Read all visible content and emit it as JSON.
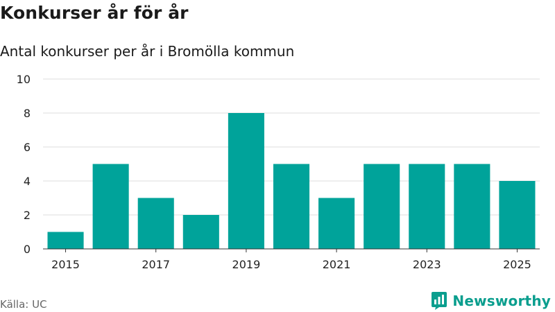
{
  "chart_data": {
    "type": "bar",
    "title": "Konkurser år för år",
    "subtitle": "Antal konkurser per år i Bromölla kommun",
    "categories": [
      "2015",
      "2016",
      "2017",
      "2018",
      "2019",
      "2020",
      "2021",
      "2022",
      "2023",
      "2024",
      "2025"
    ],
    "values": [
      1,
      5,
      3,
      2,
      8,
      5,
      3,
      5,
      5,
      5,
      4
    ],
    "xticks": [
      "2015",
      "2017",
      "2019",
      "2021",
      "2023",
      "2025"
    ],
    "yticks": [
      0,
      2,
      4,
      6,
      8,
      10
    ],
    "ylim": [
      0,
      10
    ],
    "xlabel": "",
    "ylabel": "",
    "grid": true,
    "bar_color": "#00a39a",
    "grid_color": "#dddddd"
  },
  "source": "Källa: UC",
  "brand": {
    "name": "Newsworthy",
    "icon": "newsworthy-logo-icon",
    "color": "#0a9e8e"
  }
}
